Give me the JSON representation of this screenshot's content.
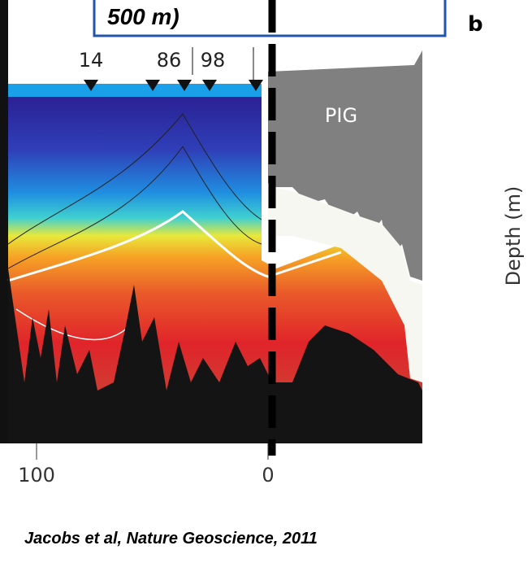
{
  "header": {
    "text": "500 m)"
  },
  "panel": {
    "label": "b"
  },
  "stations": [
    "14",
    "86",
    "98"
  ],
  "ice_shelf": {
    "label": "PIG"
  },
  "axis": {
    "y_label": "Depth (m)",
    "x_ticks": [
      "100",
      "0"
    ]
  },
  "citation": "Jacobs et al, Nature Geoscience, 2011"
}
